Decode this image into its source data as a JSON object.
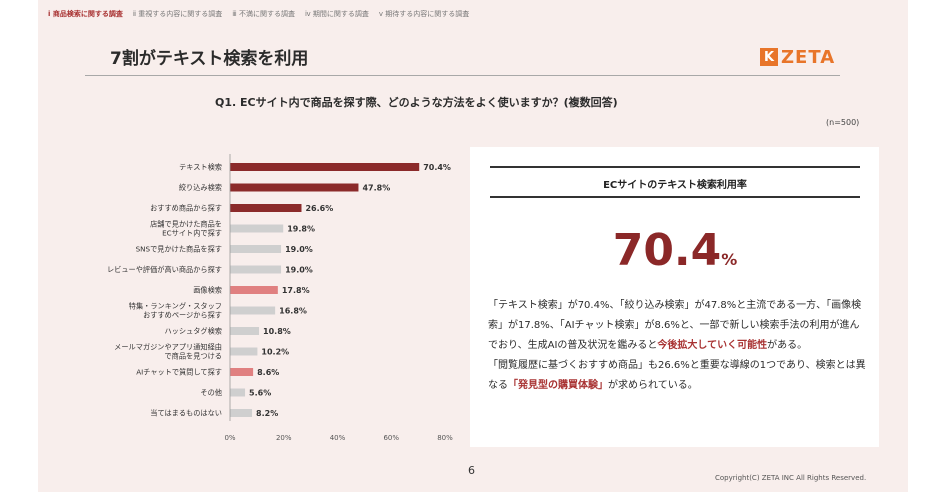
{
  "nav_tabs": [
    {
      "label": "ⅰ 商品検索に関する調査",
      "active": true
    },
    {
      "label": "ⅱ 重視する内容に関する調査",
      "active": false
    },
    {
      "label": "ⅲ 不満に関する調査",
      "active": false
    },
    {
      "label": "ⅳ 期間に関する調査",
      "active": false
    },
    {
      "label": "ⅴ 期待する内容に関する調査",
      "active": false
    }
  ],
  "title": "7割がテキスト検索を利用",
  "logo": {
    "mark": "K",
    "text": "ZETA",
    "color": "#e8752a"
  },
  "question": "Q1. ECサイト内で商品を探す際、どのような方法をよく使いますか？(複数回答)",
  "sample_size": "(n=500)",
  "chart_data": {
    "type": "bar",
    "orientation": "horizontal",
    "categories": [
      [
        "テキスト検索"
      ],
      [
        "絞り込み検索"
      ],
      [
        "おすすめ商品から探す"
      ],
      [
        "店舗で見かけた商品を",
        "ECサイト内で探す"
      ],
      [
        "SNSで見かけた商品を探す"
      ],
      [
        "レビューや評価が高い商品から探す"
      ],
      [
        "画像検索"
      ],
      [
        "特集・ランキング・スタッフ",
        "おすすめページから探す"
      ],
      [
        "ハッシュタグ検索"
      ],
      [
        "メールマガジンやアプリ通知経由",
        "で商品を見つける"
      ],
      [
        "AIチャットで質問して探す"
      ],
      [
        "その他"
      ],
      [
        "当てはまるものはない"
      ]
    ],
    "values": [
      70.4,
      47.8,
      26.6,
      19.8,
      19.0,
      19.0,
      17.8,
      16.8,
      10.8,
      10.2,
      8.6,
      5.6,
      8.2
    ],
    "value_labels": [
      "70.4%",
      "47.8%",
      "26.6%",
      "19.8%",
      "19.0%",
      "19.0%",
      "17.8%",
      "16.8%",
      "10.8%",
      "10.2%",
      "8.6%",
      "5.6%",
      "8.2%"
    ],
    "bar_colors": [
      "#8b2a2a",
      "#8b2a2a",
      "#8b2a2a",
      "#cfcfcf",
      "#cfcfcf",
      "#cfcfcf",
      "#e08080",
      "#cfcfcf",
      "#cfcfcf",
      "#cfcfcf",
      "#e08080",
      "#cfcfcf",
      "#cfcfcf"
    ],
    "xlim": [
      0,
      80
    ],
    "xticks": [
      "0%",
      "20%",
      "40%",
      "60%",
      "80%"
    ],
    "grid": false
  },
  "panel": {
    "heading": "ECサイトのテキスト検索利用率",
    "big_number": "70.4",
    "big_unit": "%",
    "para1": [
      {
        "t": "「テキスト検索」が70.4%、「絞り込み検索」が47.8%と主流である一方、「画像検索」が17.8%、「AIチャット検索」が8.6%と、一部で新しい検索手法の利用が進んでおり、生成AIの普及状況を鑑みると",
        "e": false
      },
      {
        "t": "今後拡大していく可能性",
        "e": true
      },
      {
        "t": "がある。",
        "e": false
      }
    ],
    "para2": [
      {
        "t": "「閲覧履歴に基づくおすすめ商品」も26.6%と重要な導線の1つであり、検索とは異なる",
        "e": false
      },
      {
        "t": "「発見型の購買体験」",
        "e": true
      },
      {
        "t": "が求められている。",
        "e": false
      }
    ]
  },
  "page_number": "6",
  "copyright": "Copyright(C) ZETA INC All Rights Reserved."
}
